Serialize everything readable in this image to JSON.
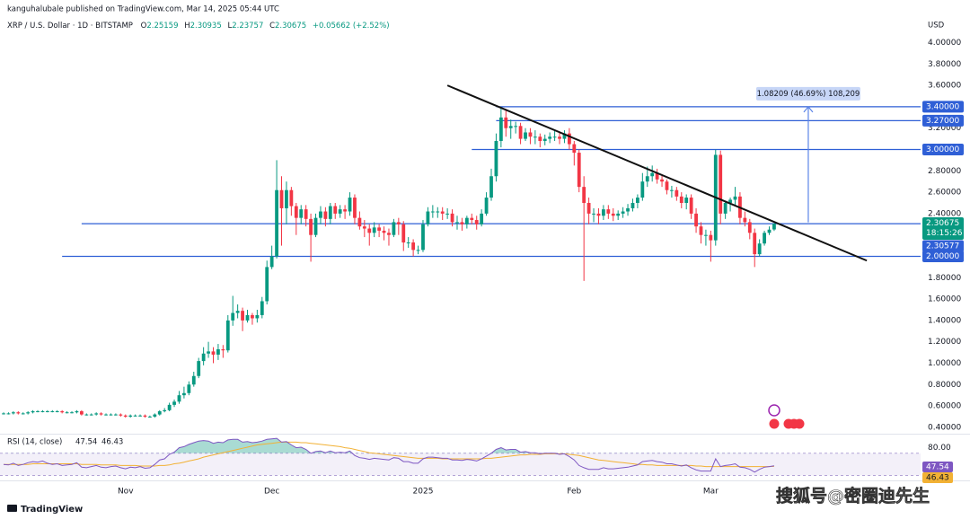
{
  "chart_data": {
    "type": "candlestick",
    "published": "kanguhalubale published on TradingView.com, Mar 14, 2025 05:44 UTC",
    "symbol": "XRP / U.S. Dollar · 1D · BITSTAMP",
    "ohlc_labels": [
      "O",
      "H",
      "L",
      "C"
    ],
    "change_label": "+0.05662 (+2.52%)",
    "currency": "USD",
    "countdown": "18:15:26",
    "footer_brand": "TradingView",
    "watermark": "搜狐号@密圈迪先生",
    "up_color": "#089981",
    "down_color": "#f23645",
    "grid": false,
    "ylim": [
      0.34,
      4.08
    ],
    "yticks": [
      {
        "value": 0.4,
        "label": "0.40000"
      },
      {
        "value": 0.6,
        "label": "0.60000"
      },
      {
        "value": 0.8,
        "label": "0.80000"
      },
      {
        "value": 1.0,
        "label": "1.00000"
      },
      {
        "value": 1.2,
        "label": "1.20000"
      },
      {
        "value": 1.4,
        "label": "1.40000"
      },
      {
        "value": 1.6,
        "label": "1.60000"
      },
      {
        "value": 1.8,
        "label": "1.80000"
      },
      {
        "value": 2.0,
        "label": "2.00000"
      },
      {
        "value": 2.2,
        "label": "2.20000"
      },
      {
        "value": 2.4,
        "label": "2.40000"
      },
      {
        "value": 2.6,
        "label": "2.60000"
      },
      {
        "value": 2.8,
        "label": "2.80000"
      },
      {
        "value": 3.0,
        "label": "3.00000"
      },
      {
        "value": 3.2,
        "label": "3.20000"
      },
      {
        "value": 3.4,
        "label": "3.40000"
      },
      {
        "value": 3.6,
        "label": "3.60000"
      },
      {
        "value": 3.8,
        "label": "3.80000"
      },
      {
        "value": 4.0,
        "label": "4.00000"
      }
    ],
    "categories": [
      null,
      null,
      null,
      null,
      null,
      null,
      null,
      null,
      null,
      null,
      null,
      null,
      null,
      null,
      null,
      null,
      null,
      null,
      null,
      null,
      null,
      null,
      null,
      null,
      null,
      "Nov",
      null,
      null,
      null,
      null,
      null,
      null,
      null,
      null,
      null,
      null,
      null,
      null,
      null,
      null,
      null,
      null,
      null,
      null,
      null,
      null,
      null,
      null,
      null,
      null,
      null,
      null,
      null,
      null,
      null,
      "Dec",
      null,
      null,
      null,
      null,
      null,
      null,
      null,
      null,
      null,
      null,
      null,
      null,
      null,
      null,
      null,
      null,
      null,
      null,
      null,
      null,
      null,
      null,
      null,
      null,
      null,
      null,
      null,
      null,
      null,
      null,
      "2025",
      null,
      null,
      null,
      null,
      null,
      null,
      null,
      null,
      null,
      null,
      null,
      null,
      null,
      null,
      null,
      null,
      null,
      null,
      null,
      null,
      null,
      null,
      null,
      null,
      null,
      null,
      null,
      null,
      null,
      null,
      "Feb",
      null,
      null,
      null,
      null,
      null,
      null,
      null,
      null,
      null,
      null,
      null,
      null,
      null,
      null,
      null,
      null,
      null,
      null,
      null,
      null,
      null,
      null,
      null,
      null,
      null,
      null,
      null,
      "Mar",
      null,
      null,
      null,
      null,
      null,
      null,
      null,
      null,
      null,
      null,
      null,
      null,
      null
    ],
    "open": [
      0.53,
      0.53,
      0.53,
      0.54,
      0.53,
      0.53,
      0.54,
      0.55,
      0.55,
      0.55,
      0.55,
      0.55,
      0.55,
      0.54,
      0.54,
      0.54,
      0.55,
      0.52,
      0.52,
      0.52,
      0.53,
      0.52,
      0.52,
      0.52,
      0.52,
      0.51,
      0.5,
      0.51,
      0.51,
      0.51,
      0.5,
      0.5,
      0.52,
      0.55,
      0.56,
      0.61,
      0.64,
      0.7,
      0.72,
      0.8,
      0.88,
      1.02,
      1.09,
      1.11,
      1.08,
      1.13,
      1.12,
      1.4,
      1.47,
      1.49,
      1.4,
      1.45,
      1.42,
      1.45,
      1.58,
      1.9,
      2.0,
      2.62,
      2.45,
      2.62,
      2.47,
      2.36,
      2.44,
      2.35,
      2.2,
      2.36,
      2.42,
      2.35,
      2.47,
      2.4,
      2.44,
      2.42,
      2.55,
      2.36,
      2.28,
      2.26,
      2.22,
      2.27,
      2.24,
      2.22,
      2.2,
      2.32,
      2.3,
      2.13,
      2.13,
      2.06,
      2.06,
      2.3,
      2.42,
      2.42,
      2.42,
      2.4,
      2.4,
      2.32,
      2.32,
      2.3,
      2.36,
      2.34,
      2.3,
      2.4,
      2.55,
      2.75,
      3.08,
      3.3,
      3.2,
      3.22,
      3.22,
      3.1,
      3.16,
      3.12,
      3.12,
      3.08,
      3.1,
      3.12,
      3.12,
      3.1,
      3.15,
      3.05,
      2.97,
      2.65,
      2.5,
      2.4,
      2.4,
      2.38,
      2.44,
      2.4,
      2.38,
      2.4,
      2.42,
      2.45,
      2.5,
      2.55,
      2.7,
      2.75,
      2.78,
      2.72,
      2.7,
      2.62,
      2.62,
      2.56,
      2.5,
      2.55,
      2.4,
      2.28,
      2.2,
      2.2,
      2.15,
      2.95,
      2.4,
      2.5,
      2.53,
      2.56,
      2.36,
      2.32,
      2.22,
      2.02,
      2.12,
      2.22,
      2.25159
    ],
    "high": [
      0.54,
      0.54,
      0.55,
      0.55,
      0.54,
      0.55,
      0.56,
      0.56,
      0.56,
      0.56,
      0.56,
      0.56,
      0.56,
      0.55,
      0.55,
      0.56,
      0.56,
      0.53,
      0.53,
      0.54,
      0.54,
      0.53,
      0.53,
      0.53,
      0.53,
      0.52,
      0.52,
      0.52,
      0.52,
      0.52,
      0.51,
      0.53,
      0.56,
      0.58,
      0.63,
      0.66,
      0.74,
      0.78,
      0.83,
      0.92,
      1.05,
      1.15,
      1.2,
      1.15,
      1.18,
      1.17,
      1.45,
      1.63,
      1.55,
      1.52,
      1.5,
      1.47,
      1.5,
      1.62,
      1.96,
      2.1,
      2.9,
      2.75,
      2.7,
      2.65,
      2.5,
      2.48,
      2.48,
      2.4,
      2.4,
      2.47,
      2.46,
      2.5,
      2.5,
      2.48,
      2.48,
      2.6,
      2.58,
      2.42,
      2.34,
      2.3,
      2.32,
      2.3,
      2.28,
      2.26,
      2.35,
      2.36,
      2.33,
      2.18,
      2.16,
      2.1,
      2.34,
      2.46,
      2.48,
      2.46,
      2.46,
      2.45,
      2.44,
      2.38,
      2.36,
      2.38,
      2.4,
      2.38,
      2.44,
      2.6,
      2.82,
      3.15,
      3.4,
      3.38,
      3.28,
      3.26,
      3.25,
      3.2,
      3.2,
      3.18,
      3.15,
      3.14,
      3.16,
      3.18,
      3.16,
      3.18,
      3.2,
      3.08,
      3.0,
      2.75,
      2.55,
      2.45,
      2.45,
      2.48,
      2.48,
      2.45,
      2.43,
      2.46,
      2.49,
      2.54,
      2.58,
      2.78,
      2.84,
      2.85,
      2.82,
      2.76,
      2.72,
      2.66,
      2.65,
      2.6,
      2.58,
      2.58,
      2.45,
      2.32,
      2.25,
      2.24,
      3.0,
      2.99,
      2.52,
      2.55,
      2.65,
      2.6,
      2.42,
      2.35,
      2.26,
      2.16,
      2.24,
      2.28,
      2.30935
    ],
    "low": [
      0.52,
      0.52,
      0.52,
      0.52,
      0.52,
      0.52,
      0.53,
      0.54,
      0.54,
      0.54,
      0.54,
      0.54,
      0.53,
      0.53,
      0.53,
      0.53,
      0.51,
      0.51,
      0.51,
      0.51,
      0.51,
      0.51,
      0.51,
      0.51,
      0.5,
      0.49,
      0.49,
      0.5,
      0.5,
      0.49,
      0.49,
      0.49,
      0.51,
      0.54,
      0.55,
      0.59,
      0.62,
      0.67,
      0.7,
      0.78,
      0.86,
      0.98,
      1.05,
      1.0,
      1.03,
      1.05,
      1.1,
      1.35,
      1.42,
      1.3,
      1.38,
      1.36,
      1.38,
      1.42,
      1.55,
      1.88,
      1.98,
      2.1,
      2.3,
      2.38,
      2.2,
      2.3,
      2.28,
      1.95,
      2.18,
      2.3,
      2.28,
      2.3,
      2.35,
      2.36,
      2.35,
      2.38,
      2.3,
      2.25,
      2.18,
      2.1,
      2.18,
      2.18,
      2.15,
      2.1,
      2.18,
      2.2,
      2.05,
      2.08,
      2.0,
      2.02,
      2.04,
      2.28,
      2.36,
      2.36,
      2.34,
      2.35,
      2.28,
      2.25,
      2.24,
      2.26,
      2.3,
      2.25,
      2.28,
      2.38,
      2.52,
      2.7,
      3.02,
      3.12,
      3.1,
      3.15,
      3.05,
      3.08,
      3.05,
      3.05,
      3.02,
      3.04,
      3.06,
      3.08,
      3.05,
      3.06,
      3.0,
      2.85,
      2.6,
      1.77,
      2.3,
      2.32,
      2.3,
      2.34,
      2.35,
      2.33,
      2.34,
      2.36,
      2.38,
      2.42,
      2.45,
      2.52,
      2.65,
      2.7,
      2.68,
      2.65,
      2.58,
      2.55,
      2.52,
      2.45,
      2.44,
      2.35,
      2.22,
      2.12,
      2.1,
      1.95,
      2.1,
      2.3,
      2.35,
      2.42,
      2.48,
      2.3,
      2.28,
      2.16,
      1.9,
      2.0,
      2.1,
      2.2,
      2.23757
    ],
    "close": [
      0.53,
      0.53,
      0.54,
      0.53,
      0.53,
      0.54,
      0.55,
      0.55,
      0.55,
      0.55,
      0.55,
      0.55,
      0.54,
      0.54,
      0.54,
      0.55,
      0.52,
      0.52,
      0.52,
      0.53,
      0.52,
      0.52,
      0.52,
      0.52,
      0.51,
      0.5,
      0.51,
      0.51,
      0.51,
      0.5,
      0.5,
      0.52,
      0.55,
      0.56,
      0.61,
      0.64,
      0.7,
      0.72,
      0.8,
      0.88,
      1.02,
      1.09,
      1.11,
      1.08,
      1.13,
      1.12,
      1.4,
      1.47,
      1.49,
      1.4,
      1.45,
      1.42,
      1.45,
      1.58,
      1.9,
      2.0,
      2.62,
      2.45,
      2.62,
      2.47,
      2.36,
      2.44,
      2.35,
      2.2,
      2.36,
      2.42,
      2.35,
      2.47,
      2.4,
      2.44,
      2.42,
      2.55,
      2.36,
      2.28,
      2.26,
      2.22,
      2.27,
      2.24,
      2.22,
      2.2,
      2.32,
      2.3,
      2.13,
      2.13,
      2.06,
      2.06,
      2.3,
      2.42,
      2.42,
      2.42,
      2.4,
      2.4,
      2.32,
      2.32,
      2.3,
      2.36,
      2.34,
      2.3,
      2.4,
      2.55,
      2.75,
      3.08,
      3.3,
      3.2,
      3.22,
      3.22,
      3.1,
      3.16,
      3.12,
      3.12,
      3.08,
      3.1,
      3.12,
      3.12,
      3.1,
      3.15,
      3.05,
      2.97,
      2.65,
      2.5,
      2.4,
      2.4,
      2.38,
      2.44,
      2.4,
      2.38,
      2.4,
      2.42,
      2.45,
      2.5,
      2.55,
      2.7,
      2.75,
      2.78,
      2.72,
      2.7,
      2.62,
      2.62,
      2.56,
      2.5,
      2.55,
      2.4,
      2.28,
      2.2,
      2.2,
      2.15,
      2.95,
      2.4,
      2.5,
      2.53,
      2.56,
      2.36,
      2.32,
      2.22,
      2.02,
      2.12,
      2.22,
      2.25,
      2.30675
    ],
    "levels": [
      {
        "value": 3.4,
        "label": "3.40000",
        "from": 101
      },
      {
        "value": 3.27,
        "label": "3.27000",
        "from": 101
      },
      {
        "value": 3.0,
        "label": "3.00000",
        "from": 96
      },
      {
        "value": 2.30577,
        "label": "2.30577",
        "from": 16
      },
      {
        "value": 2.0,
        "label": "2.00000",
        "from": 12
      }
    ],
    "level_color": "#2f5fd6",
    "trendline": {
      "from": [
        91,
        3.6
      ],
      "to": [
        177,
        1.96
      ]
    },
    "measure": {
      "from": 2.31791,
      "to": 3.4,
      "at": 165,
      "label": "1.08209 (46.69%) 108,209"
    },
    "rsi": {
      "title": "RSI (14, close)",
      "color": "#7e57c2",
      "ma_color": "#f2b134",
      "ylim": [
        26,
        102
      ],
      "yticks": [
        {
          "value": 80,
          "label": "80.00"
        }
      ],
      "band": [
        30,
        70
      ],
      "values": [
        50,
        49,
        52,
        48,
        50,
        53,
        55,
        54,
        56,
        52,
        50,
        51,
        48,
        49,
        50,
        53,
        45,
        44,
        46,
        48,
        45,
        44,
        46,
        47,
        44,
        42,
        45,
        44,
        46,
        43,
        44,
        50,
        58,
        60,
        68,
        72,
        80,
        82,
        86,
        89,
        92,
        93,
        92,
        88,
        90,
        89,
        94,
        95,
        95,
        90,
        91,
        89,
        90,
        92,
        95,
        96,
        97,
        90,
        91,
        85,
        80,
        81,
        77,
        70,
        73,
        74,
        71,
        74,
        71,
        72,
        71,
        74,
        66,
        62,
        61,
        59,
        61,
        60,
        59,
        58,
        62,
        61,
        55,
        55,
        52,
        52,
        60,
        63,
        63,
        62,
        61,
        61,
        58,
        58,
        57,
        59,
        58,
        56,
        60,
        65,
        70,
        77,
        80,
        76,
        77,
        77,
        72,
        73,
        71,
        71,
        69,
        70,
        70,
        70,
        68,
        69,
        64,
        58,
        48,
        44,
        41,
        41,
        41,
        44,
        42,
        42,
        43,
        44,
        45,
        47,
        49,
        55,
        56,
        57,
        55,
        54,
        51,
        51,
        49,
        47,
        49,
        44,
        40,
        38,
        38,
        38,
        60,
        46,
        48,
        49,
        51,
        45,
        44,
        41,
        36,
        41,
        45,
        46,
        47.54
      ],
      "ma": [
        50,
        50,
        50,
        50,
        50,
        50,
        51,
        51,
        51,
        51,
        51,
        51,
        51,
        51,
        51,
        51,
        50,
        50,
        50,
        50,
        49,
        49,
        49,
        49,
        48,
        48,
        48,
        48,
        47,
        47,
        47,
        47,
        48,
        48,
        49,
        51,
        52,
        54,
        56,
        58,
        60,
        63,
        65,
        67,
        69,
        71,
        73,
        75,
        77,
        79,
        81,
        83,
        85,
        86,
        87,
        88,
        89,
        90,
        90,
        90,
        90,
        89,
        89,
        88,
        87,
        86,
        85,
        84,
        83,
        82,
        80,
        79,
        77,
        75,
        73,
        71,
        70,
        69,
        68,
        67,
        66,
        65,
        64,
        63,
        62,
        61,
        61,
        61,
        61,
        61,
        60,
        60,
        60,
        60,
        60,
        60,
        60,
        60,
        60,
        61,
        61,
        62,
        63,
        64,
        65,
        66,
        67,
        67,
        68,
        68,
        68,
        69,
        69,
        69,
        69,
        69,
        68,
        67,
        66,
        64,
        62,
        60,
        58,
        57,
        56,
        55,
        54,
        53,
        52,
        51,
        50,
        50,
        49,
        49,
        48,
        48,
        48,
        48,
        48,
        48,
        48,
        48,
        47,
        47,
        46,
        46,
        46,
        46,
        46,
        46,
        46,
        46,
        46,
        46,
        46,
        46,
        46,
        46,
        46.43
      ]
    }
  }
}
